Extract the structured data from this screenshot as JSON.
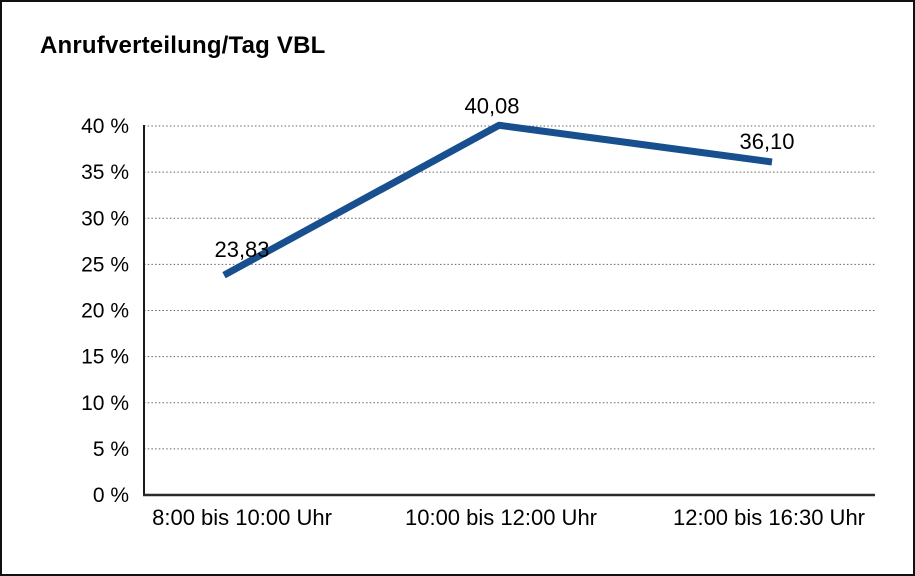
{
  "page": {
    "background": "#ffffff",
    "frame_border_color": "#111111"
  },
  "chart_data": {
    "type": "line",
    "title": "Anrufverteilung/Tag VBL",
    "categories": [
      "8:00 bis 10:00 Uhr",
      "10:00 bis 12:00 Uhr",
      "12:00 bis 16:30 Uhr"
    ],
    "values": [
      23.83,
      40.08,
      36.1
    ],
    "data_labels": [
      "23,83",
      "40,08",
      "36,10"
    ],
    "y_ticks": [
      "0 %",
      "5 %",
      "10 %",
      "15 %",
      "20 %",
      "25 %",
      "30 %",
      "35 %",
      "40 %"
    ],
    "ylim": [
      0,
      40
    ],
    "y_step": 5,
    "xlabel": "",
    "ylabel": "",
    "grid": "horizontal-dotted",
    "legend": "none",
    "line_color": "#174f8f",
    "grid_color": "#666666",
    "axis_color": "#2b2b2b",
    "text_color": "#000000"
  }
}
